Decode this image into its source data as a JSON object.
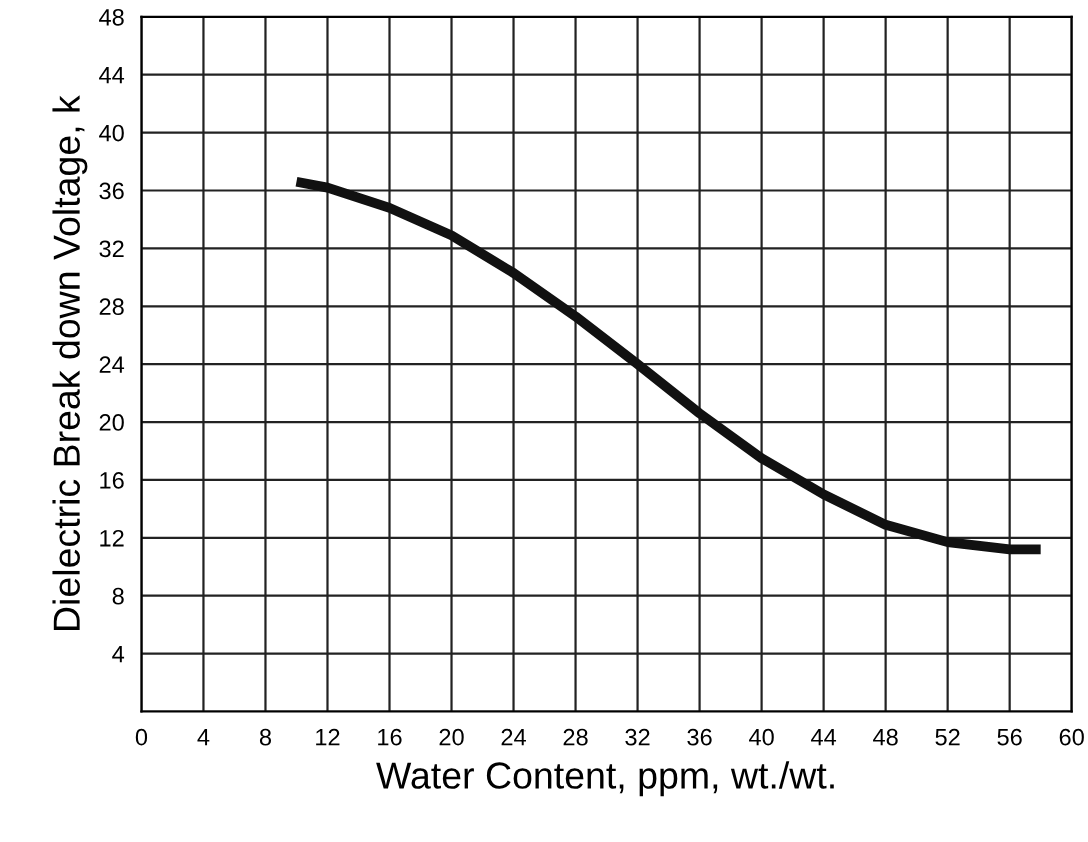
{
  "chart_data": {
    "type": "line",
    "xlabel": "Water Content, ppm, wt./wt.",
    "ylabel": "Dielectric Break down Voltage, k",
    "series": [
      {
        "color": "#111111",
        "x": [
          10,
          12,
          16,
          20,
          24,
          28,
          32,
          36,
          40,
          44,
          48,
          52,
          56,
          58
        ],
        "values": [
          36.6,
          36.2,
          34.8,
          32.9,
          30.3,
          27.3,
          24.0,
          20.6,
          17.5,
          15.0,
          12.9,
          11.7,
          11.2,
          11.2
        ]
      }
    ],
    "xlim": [
      0,
      60
    ],
    "xticks": [
      0,
      4,
      8,
      12,
      16,
      20,
      24,
      28,
      32,
      36,
      40,
      44,
      48,
      52,
      56,
      60
    ],
    "ylim": [
      0,
      48
    ],
    "yticks": [
      {
        "value": 0,
        "label": null
      },
      4,
      8,
      12,
      16,
      20,
      24,
      28,
      32,
      36,
      40,
      44,
      48
    ],
    "grid": true,
    "marker": "none",
    "line_style": "solid"
  }
}
